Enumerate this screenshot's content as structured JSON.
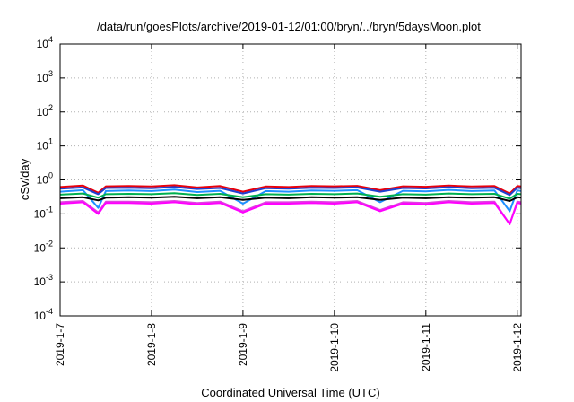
{
  "chart_data": {
    "type": "line",
    "title": "/data/run/goesPlots/archive/2019-01-12/01:00/bryn/../bryn/5daysMoon.plot",
    "xlabel": "Coordinated Universal Time (UTC)",
    "ylabel": "cSv/day",
    "yscale": "log",
    "ylim": [
      0.0001,
      10000
    ],
    "xlim": [
      "2019-01-07T00:00",
      "2019-01-12T01:00"
    ],
    "grid": true,
    "x_ticks": [
      {
        "value": "2019-01-07",
        "label": "2019-1-7"
      },
      {
        "value": "2019-01-08",
        "label": "2019-1-8"
      },
      {
        "value": "2019-01-09",
        "label": "2019-1-9"
      },
      {
        "value": "2019-01-10",
        "label": "2019-1-10"
      },
      {
        "value": "2019-01-11",
        "label": "2019-1-11"
      },
      {
        "value": "2019-01-12",
        "label": "2019-1-12"
      }
    ],
    "y_ticks": [
      {
        "value": 0.0001,
        "base": "10",
        "exp": "-4"
      },
      {
        "value": 0.001,
        "base": "10",
        "exp": "-3"
      },
      {
        "value": 0.01,
        "base": "10",
        "exp": "-2"
      },
      {
        "value": 0.1,
        "base": "10",
        "exp": "-1"
      },
      {
        "value": 1,
        "base": "10",
        "exp": "0"
      },
      {
        "value": 10,
        "base": "10",
        "exp": "1"
      },
      {
        "value": 100,
        "base": "10",
        "exp": "2"
      },
      {
        "value": 1000,
        "base": "10",
        "exp": "3"
      },
      {
        "value": 10000,
        "base": "10",
        "exp": "4"
      }
    ],
    "series": [
      {
        "color": "#e8000b",
        "x": [
          "2019-01-07T00:00",
          "2019-01-07T06:00",
          "2019-01-07T10:00",
          "2019-01-07T12:00",
          "2019-01-07T18:00",
          "2019-01-08T00:00",
          "2019-01-08T06:00",
          "2019-01-08T12:00",
          "2019-01-08T18:00",
          "2019-01-09T00:00",
          "2019-01-09T06:00",
          "2019-01-09T12:00",
          "2019-01-09T18:00",
          "2019-01-10T00:00",
          "2019-01-10T06:00",
          "2019-01-10T12:00",
          "2019-01-10T18:00",
          "2019-01-11T00:00",
          "2019-01-11T06:00",
          "2019-01-11T12:00",
          "2019-01-11T18:00",
          "2019-01-11T22:00",
          "2019-01-12T00:00",
          "2019-01-12T01:00"
        ],
        "y": [
          0.62,
          0.68,
          0.42,
          0.65,
          0.66,
          0.64,
          0.7,
          0.6,
          0.66,
          0.45,
          0.64,
          0.62,
          0.66,
          0.65,
          0.67,
          0.5,
          0.65,
          0.63,
          0.68,
          0.64,
          0.66,
          0.4,
          0.66,
          0.64
        ]
      },
      {
        "color": "#1f3fd0",
        "x": [
          "2019-01-07T00:00",
          "2019-01-07T06:00",
          "2019-01-07T10:00",
          "2019-01-07T12:00",
          "2019-01-07T18:00",
          "2019-01-08T00:00",
          "2019-01-08T06:00",
          "2019-01-08T12:00",
          "2019-01-08T18:00",
          "2019-01-09T00:00",
          "2019-01-09T06:00",
          "2019-01-09T12:00",
          "2019-01-09T18:00",
          "2019-01-10T00:00",
          "2019-01-10T06:00",
          "2019-01-10T12:00",
          "2019-01-10T18:00",
          "2019-01-11T00:00",
          "2019-01-11T06:00",
          "2019-01-11T12:00",
          "2019-01-11T18:00",
          "2019-01-11T22:00",
          "2019-01-12T00:00",
          "2019-01-12T01:00"
        ],
        "y": [
          0.55,
          0.6,
          0.38,
          0.58,
          0.59,
          0.57,
          0.62,
          0.54,
          0.58,
          0.4,
          0.57,
          0.55,
          0.59,
          0.58,
          0.6,
          0.45,
          0.58,
          0.56,
          0.61,
          0.57,
          0.59,
          0.36,
          0.59,
          0.57
        ]
      },
      {
        "color": "#1e90ff",
        "x": [
          "2019-01-07T00:00",
          "2019-01-07T06:00",
          "2019-01-07T10:00",
          "2019-01-07T12:00",
          "2019-01-07T18:00",
          "2019-01-08T00:00",
          "2019-01-08T06:00",
          "2019-01-08T12:00",
          "2019-01-08T18:00",
          "2019-01-09T00:00",
          "2019-01-09T06:00",
          "2019-01-09T12:00",
          "2019-01-09T18:00",
          "2019-01-10T00:00",
          "2019-01-10T06:00",
          "2019-01-10T12:00",
          "2019-01-10T18:00",
          "2019-01-11T00:00",
          "2019-01-11T06:00",
          "2019-01-11T12:00",
          "2019-01-11T18:00",
          "2019-01-11T22:00",
          "2019-01-12T00:00",
          "2019-01-12T01:00"
        ],
        "y": [
          0.45,
          0.5,
          0.15,
          0.47,
          0.49,
          0.47,
          0.52,
          0.44,
          0.48,
          0.2,
          0.47,
          0.45,
          0.49,
          0.48,
          0.5,
          0.22,
          0.48,
          0.46,
          0.51,
          0.47,
          0.49,
          0.12,
          0.49,
          0.47
        ]
      },
      {
        "color": "#00b050",
        "x": [
          "2019-01-07T00:00",
          "2019-01-07T06:00",
          "2019-01-07T10:00",
          "2019-01-07T12:00",
          "2019-01-07T18:00",
          "2019-01-08T00:00",
          "2019-01-08T06:00",
          "2019-01-08T12:00",
          "2019-01-08T18:00",
          "2019-01-09T00:00",
          "2019-01-09T06:00",
          "2019-01-09T12:00",
          "2019-01-09T18:00",
          "2019-01-10T00:00",
          "2019-01-10T06:00",
          "2019-01-10T12:00",
          "2019-01-10T18:00",
          "2019-01-11T00:00",
          "2019-01-11T06:00",
          "2019-01-11T12:00",
          "2019-01-11T18:00",
          "2019-01-11T22:00",
          "2019-01-12T00:00",
          "2019-01-12T01:00"
        ],
        "y": [
          0.37,
          0.4,
          0.3,
          0.38,
          0.39,
          0.38,
          0.41,
          0.36,
          0.39,
          0.31,
          0.38,
          0.37,
          0.39,
          0.38,
          0.4,
          0.32,
          0.38,
          0.37,
          0.4,
          0.38,
          0.39,
          0.28,
          0.39,
          0.38
        ]
      },
      {
        "color": "#000000",
        "x": [
          "2019-01-07T00:00",
          "2019-01-07T06:00",
          "2019-01-07T10:00",
          "2019-01-07T12:00",
          "2019-01-07T18:00",
          "2019-01-08T00:00",
          "2019-01-08T06:00",
          "2019-01-08T12:00",
          "2019-01-08T18:00",
          "2019-01-09T00:00",
          "2019-01-09T06:00",
          "2019-01-09T12:00",
          "2019-01-09T18:00",
          "2019-01-10T00:00",
          "2019-01-10T06:00",
          "2019-01-10T12:00",
          "2019-01-10T18:00",
          "2019-01-11T00:00",
          "2019-01-11T06:00",
          "2019-01-11T12:00",
          "2019-01-11T18:00",
          "2019-01-11T22:00",
          "2019-01-12T00:00",
          "2019-01-12T01:00"
        ],
        "y": [
          0.29,
          0.31,
          0.25,
          0.3,
          0.31,
          0.3,
          0.32,
          0.29,
          0.31,
          0.26,
          0.3,
          0.29,
          0.31,
          0.3,
          0.31,
          0.26,
          0.3,
          0.29,
          0.31,
          0.3,
          0.31,
          0.24,
          0.31,
          0.3
        ]
      },
      {
        "color": "#e040e0",
        "x": [
          "2019-01-07T00:00",
          "2019-01-07T06:00",
          "2019-01-07T10:00",
          "2019-01-07T12:00",
          "2019-01-07T18:00",
          "2019-01-08T00:00",
          "2019-01-08T06:00",
          "2019-01-08T12:00",
          "2019-01-08T18:00",
          "2019-01-09T00:00",
          "2019-01-09T06:00",
          "2019-01-09T12:00",
          "2019-01-09T18:00",
          "2019-01-10T00:00",
          "2019-01-10T06:00",
          "2019-01-10T12:00",
          "2019-01-10T18:00",
          "2019-01-11T00:00",
          "2019-01-11T06:00",
          "2019-01-11T12:00",
          "2019-01-11T18:00",
          "2019-01-11T22:00",
          "2019-01-12T00:00",
          "2019-01-12T01:00"
        ],
        "y": [
          0.22,
          0.24,
          0.11,
          0.23,
          0.23,
          0.22,
          0.24,
          0.21,
          0.23,
          0.12,
          0.22,
          0.22,
          0.23,
          0.22,
          0.24,
          0.13,
          0.22,
          0.21,
          0.24,
          0.22,
          0.23,
          0.05,
          0.23,
          0.22
        ]
      },
      {
        "color": "#ff00ff",
        "x": [
          "2019-01-07T00:00",
          "2019-01-07T06:00",
          "2019-01-07T10:00",
          "2019-01-07T12:00",
          "2019-01-07T18:00",
          "2019-01-08T00:00",
          "2019-01-08T06:00",
          "2019-01-08T12:00",
          "2019-01-08T18:00",
          "2019-01-09T00:00",
          "2019-01-09T06:00",
          "2019-01-09T12:00",
          "2019-01-09T18:00",
          "2019-01-10T00:00",
          "2019-01-10T06:00",
          "2019-01-10T12:00",
          "2019-01-10T18:00",
          "2019-01-11T00:00",
          "2019-01-11T06:00",
          "2019-01-11T12:00",
          "2019-01-11T18:00",
          "2019-01-11T22:00",
          "2019-01-12T00:00",
          "2019-01-12T01:00"
        ],
        "y": [
          0.2,
          0.22,
          0.1,
          0.21,
          0.21,
          0.2,
          0.22,
          0.19,
          0.21,
          0.11,
          0.2,
          0.2,
          0.21,
          0.2,
          0.22,
          0.12,
          0.2,
          0.19,
          0.22,
          0.2,
          0.21,
          0.05,
          0.21,
          0.2
        ]
      }
    ]
  }
}
